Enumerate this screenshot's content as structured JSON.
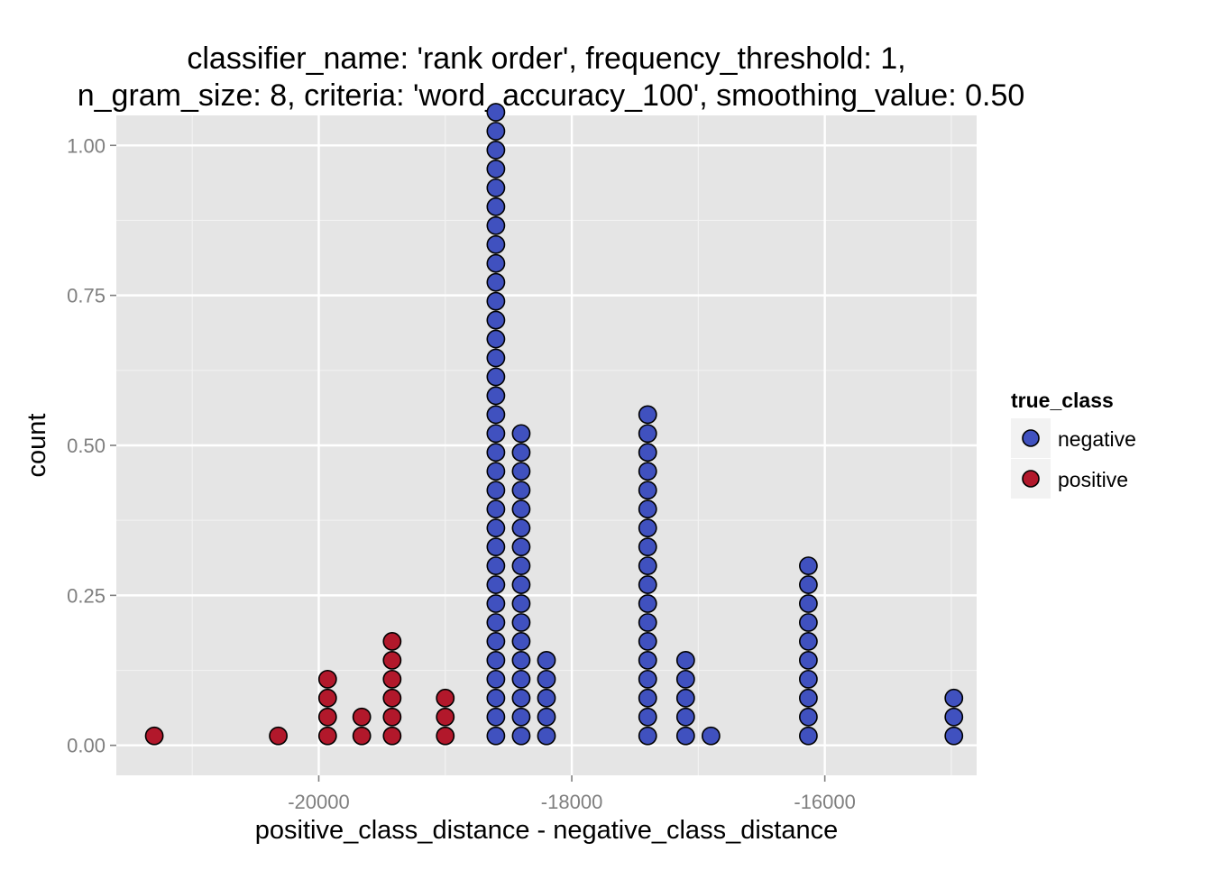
{
  "chart_data": {
    "type": "dotplot",
    "title_lines": [
      "classifier_name: 'rank order', frequency_threshold: 1,",
      "n_gram_size: 8, criteria: 'word_accuracy_100', smoothing_value: 0.50"
    ],
    "xlabel": "positive_class_distance - negative_class_distance",
    "ylabel": "count",
    "xlim": [
      -21600,
      -14800
    ],
    "ylim": [
      -0.05,
      1.05
    ],
    "x_ticks": [
      -20000,
      -18000,
      -16000
    ],
    "x_tick_labels": [
      "-20000",
      "-18000",
      "-16000"
    ],
    "y_ticks": [
      0.0,
      0.25,
      0.5,
      0.75,
      1.0
    ],
    "y_tick_labels": [
      "0.00",
      "0.25",
      "0.50",
      "0.75",
      "1.00"
    ],
    "grid": true,
    "legend": {
      "title": "true_class",
      "position": "right",
      "entries": [
        {
          "label": "negative",
          "color": "#4051bf"
        },
        {
          "label": "positive",
          "color": "#b2182b"
        }
      ]
    },
    "stack_step": 0.0315,
    "stacks": [
      {
        "x": -21300,
        "count": 1,
        "class": "positive"
      },
      {
        "x": -20320,
        "count": 1,
        "class": "positive"
      },
      {
        "x": -19930,
        "count": 4,
        "class": "positive"
      },
      {
        "x": -19660,
        "count": 2,
        "class": "positive"
      },
      {
        "x": -19420,
        "count": 6,
        "class": "positive"
      },
      {
        "x": -19000,
        "count": 3,
        "class": "positive"
      },
      {
        "x": -18600,
        "count": 34,
        "class": "negative"
      },
      {
        "x": -18400,
        "count": 17,
        "class": "negative"
      },
      {
        "x": -18200,
        "count": 5,
        "class": "negative"
      },
      {
        "x": -17400,
        "count": 18,
        "class": "negative"
      },
      {
        "x": -17100,
        "count": 5,
        "class": "negative"
      },
      {
        "x": -16900,
        "count": 1,
        "class": "negative"
      },
      {
        "x": -16130,
        "count": 10,
        "class": "negative"
      },
      {
        "x": -14980,
        "count": 3,
        "class": "negative"
      }
    ]
  }
}
